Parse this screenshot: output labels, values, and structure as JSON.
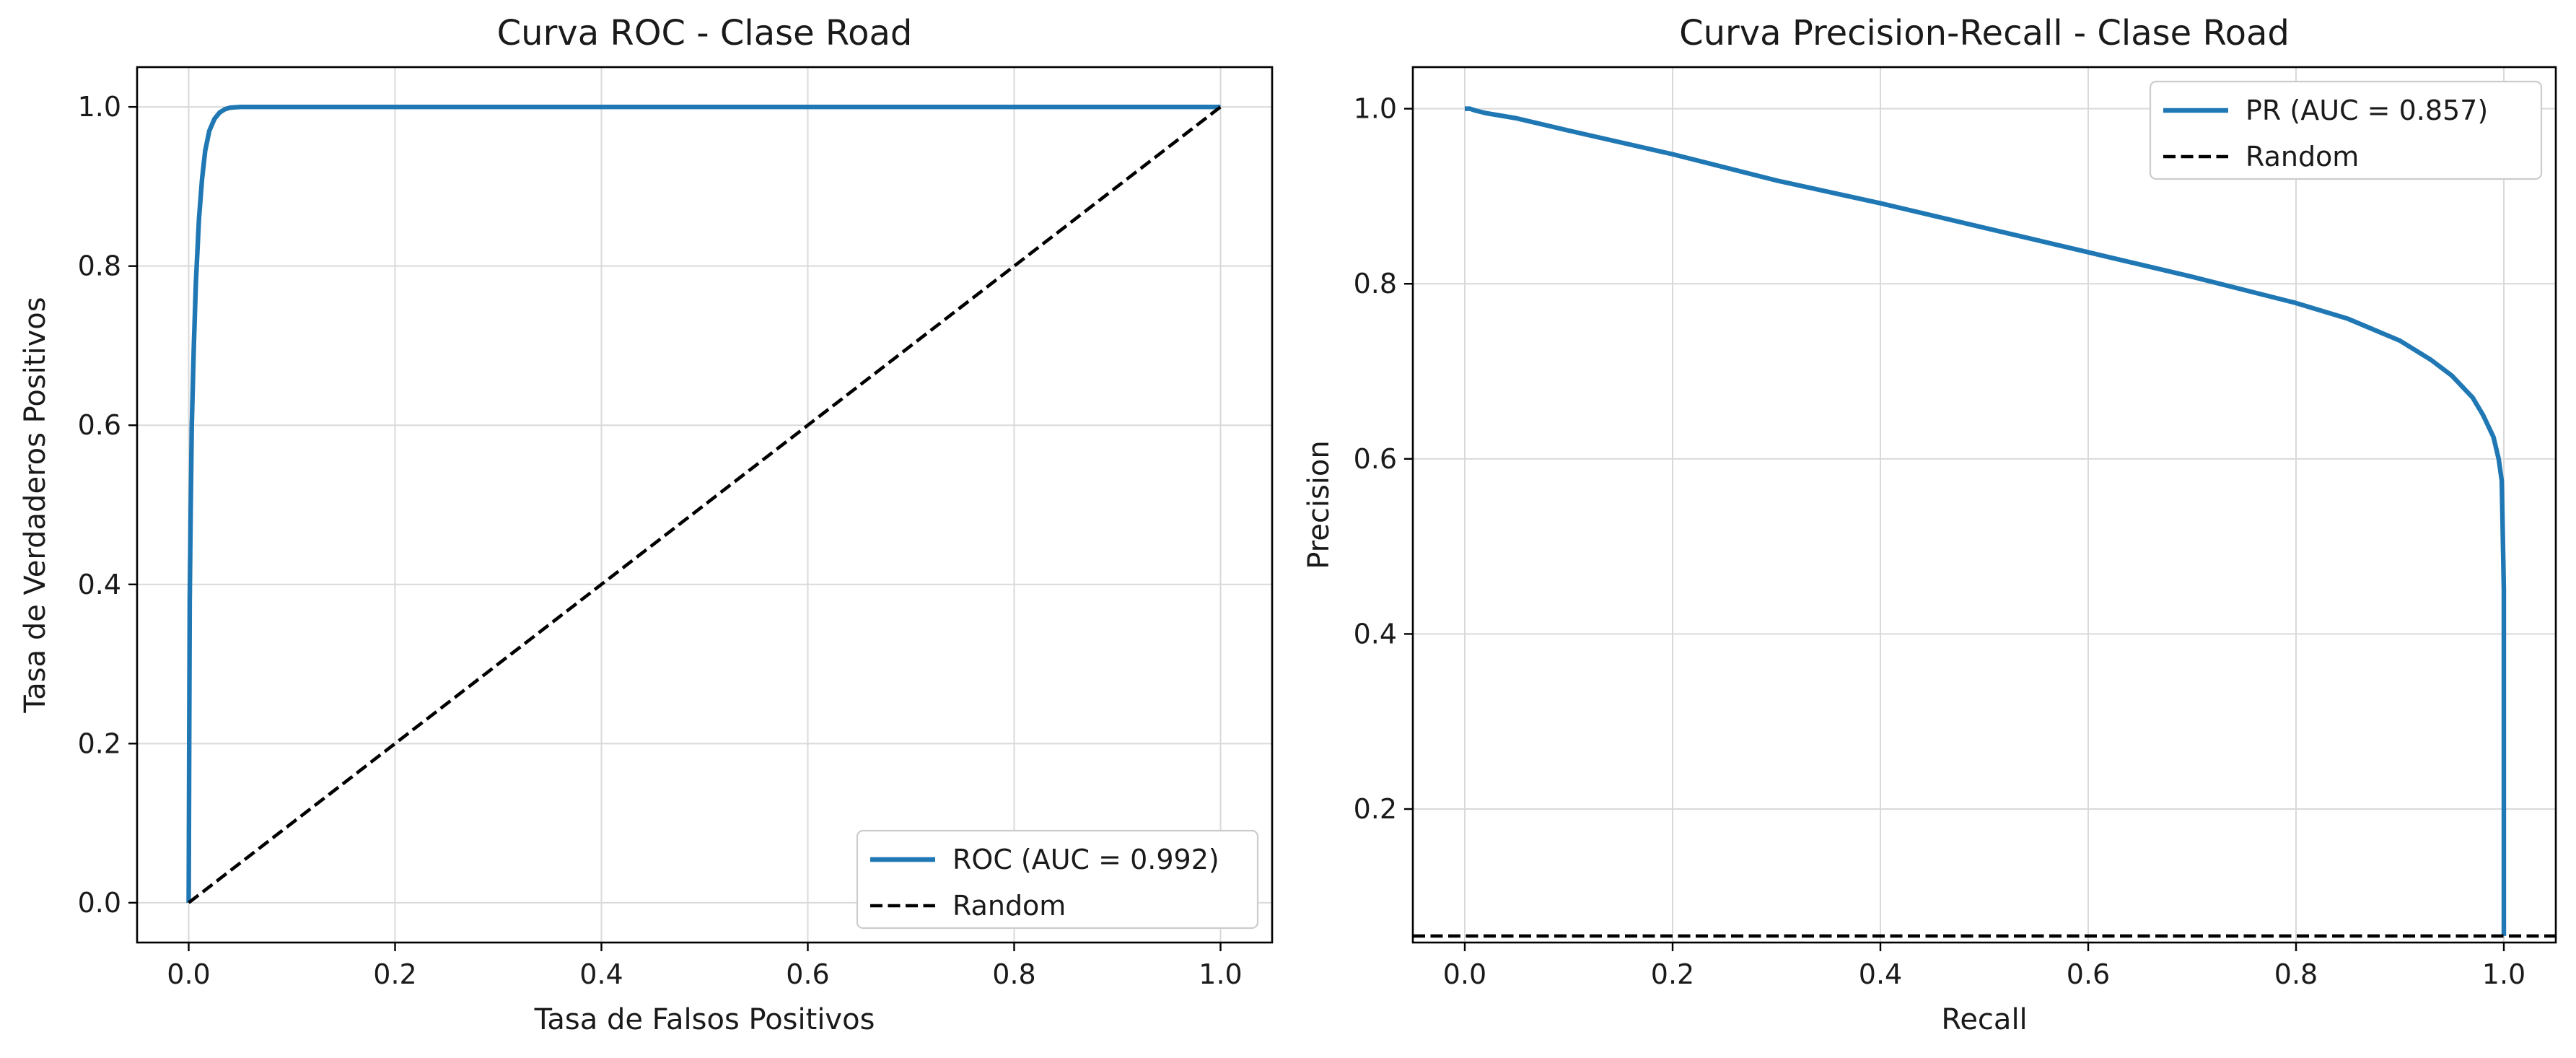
{
  "chart_data": [
    {
      "type": "line",
      "title": "Curva ROC - Clase Road",
      "xlabel": "Tasa de Falsos Positivos",
      "ylabel": "Tasa de Verdaderos Positivos",
      "xlim": [
        -0.05,
        1.05
      ],
      "ylim": [
        -0.05,
        1.05
      ],
      "xticks": [
        0.0,
        0.2,
        0.4,
        0.6,
        0.8,
        1.0
      ],
      "yticks": [
        0.0,
        0.2,
        0.4,
        0.6,
        0.8,
        1.0
      ],
      "xtick_labels": [
        "0.0",
        "0.2",
        "0.4",
        "0.6",
        "0.8",
        "1.0"
      ],
      "ytick_labels": [
        "0.0",
        "0.2",
        "0.4",
        "0.6",
        "0.8",
        "1.0"
      ],
      "grid": true,
      "legend_position": "lower-right",
      "series": [
        {
          "name": "ROC (AUC = 0.992)",
          "color": "#1f77b4",
          "style": "solid",
          "x": [
            0.0,
            0.0005,
            0.001,
            0.002,
            0.003,
            0.005,
            0.007,
            0.01,
            0.013,
            0.016,
            0.02,
            0.025,
            0.03,
            0.035,
            0.04,
            0.05,
            0.07,
            1.0
          ],
          "y": [
            0.0,
            0.2,
            0.38,
            0.5,
            0.6,
            0.7,
            0.78,
            0.86,
            0.91,
            0.945,
            0.97,
            0.985,
            0.993,
            0.997,
            0.999,
            1.0,
            1.0,
            1.0
          ]
        },
        {
          "name": "Random",
          "color": "#000000",
          "style": "dashed",
          "x": [
            0.0,
            1.0
          ],
          "y": [
            0.0,
            1.0
          ]
        }
      ]
    },
    {
      "type": "line",
      "title": "Curva Precision-Recall - Clase Road",
      "xlabel": "Recall",
      "ylabel": "Precision",
      "xlim": [
        -0.05,
        1.05
      ],
      "ylim": [
        0.0475,
        1.0475
      ],
      "xticks": [
        0.0,
        0.2,
        0.4,
        0.6,
        0.8,
        1.0
      ],
      "yticks": [
        0.2,
        0.4,
        0.6,
        0.8,
        1.0
      ],
      "xtick_labels": [
        "0.0",
        "0.2",
        "0.4",
        "0.6",
        "0.8",
        "1.0"
      ],
      "ytick_labels": [
        "0.2",
        "0.4",
        "0.6",
        "0.8",
        "1.0"
      ],
      "grid": true,
      "legend_position": "upper-right",
      "series": [
        {
          "name": "PR (AUC = 0.857)",
          "color": "#1f77b4",
          "style": "solid",
          "x": [
            0.0,
            0.005,
            0.01,
            0.02,
            0.05,
            0.1,
            0.2,
            0.3,
            0.4,
            0.5,
            0.6,
            0.7,
            0.8,
            0.85,
            0.9,
            0.93,
            0.95,
            0.97,
            0.98,
            0.99,
            0.995,
            0.998,
            1.0,
            1.0
          ],
          "y": [
            1.0,
            1.0,
            0.998,
            0.995,
            0.989,
            0.975,
            0.948,
            0.918,
            0.892,
            0.864,
            0.836,
            0.808,
            0.778,
            0.76,
            0.735,
            0.713,
            0.695,
            0.67,
            0.65,
            0.625,
            0.6,
            0.575,
            0.45,
            0.055
          ]
        },
        {
          "name": "Random",
          "color": "#000000",
          "style": "dashed",
          "x": [
            -0.05,
            1.05
          ],
          "y": [
            0.055,
            0.055
          ]
        }
      ]
    }
  ]
}
